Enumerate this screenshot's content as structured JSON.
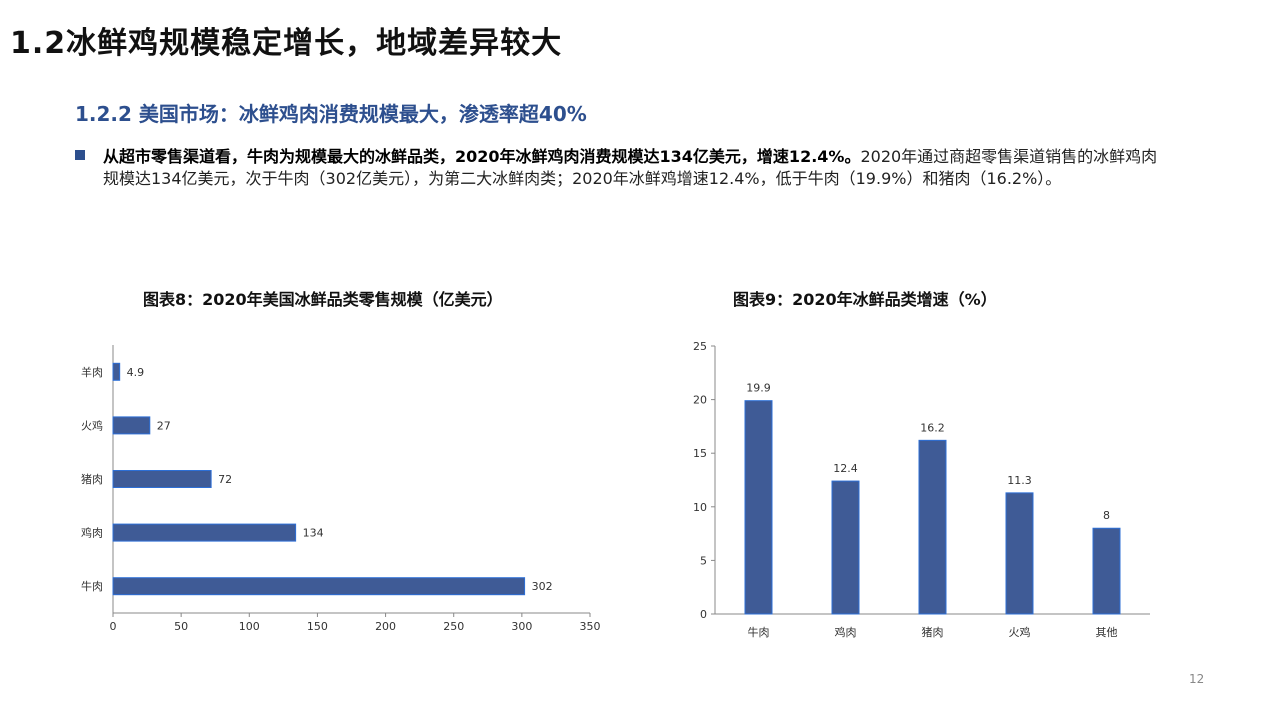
{
  "page": {
    "title": "1.2冰鲜鸡规模稳定增长，地域差异较大",
    "section_title": "1.2.2 美国市场：冰鲜鸡肉消费规模最大，渗透率超40%",
    "bullet_bold": "从超市零售渠道看，牛肉为规模最大的冰鲜品类，2020年冰鲜鸡肉消费规模达134亿美元，增速12.4%。",
    "bullet_text": "2020年通过商超零售渠道销售的冰鲜鸡肉规模达134亿美元，次于牛肉（302亿美元），为第二大冰鲜肉类；2020年冰鲜鸡增速12.4%，低于牛肉（19.9%）和猪肉（16.2%）。",
    "page_number": "12"
  },
  "colors": {
    "bar_fill": "#3f5b96",
    "bar_stroke": "#2d6fd6",
    "accent": "#2d4f8e",
    "axis": "#888888"
  },
  "chart_data": [
    {
      "type": "bar",
      "orientation": "horizontal",
      "title": "图表8：2020年美国冰鲜品类零售规模（亿美元）",
      "categories": [
        "羊肉",
        "火鸡",
        "猪肉",
        "鸡肉",
        "牛肉"
      ],
      "values": [
        4.9,
        27,
        72,
        134,
        302
      ],
      "xlim": [
        0,
        350
      ],
      "xticks": [
        0,
        50,
        100,
        150,
        200,
        250,
        300,
        350
      ],
      "grid": false
    },
    {
      "type": "bar",
      "orientation": "vertical",
      "title": "图表9：2020年冰鲜品类增速（%）",
      "categories": [
        "牛肉",
        "鸡肉",
        "猪肉",
        "火鸡",
        "其他"
      ],
      "values": [
        19.9,
        12.4,
        16.2,
        11.3,
        8
      ],
      "ylim": [
        0,
        25
      ],
      "yticks": [
        0,
        5,
        10,
        15,
        20,
        25
      ],
      "grid": false
    }
  ]
}
